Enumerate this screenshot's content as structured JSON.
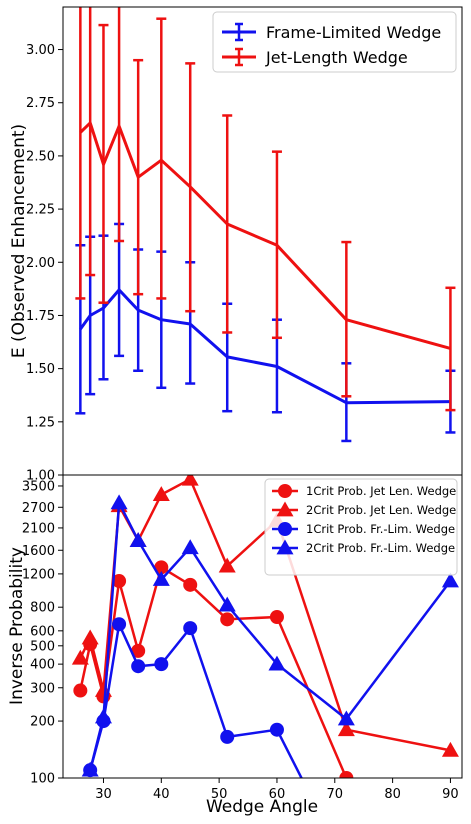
{
  "colors": {
    "red": "#ee1111",
    "blue": "#1111ee",
    "axis": "#000000"
  },
  "chart_data": [
    {
      "type": "line",
      "ylabel": "E (Observed Enhancement)",
      "ylim": [
        1.0,
        3.2
      ],
      "xlim": [
        23,
        92
      ],
      "yticks": [
        "1.00",
        "1.25",
        "1.50",
        "1.75",
        "2.00",
        "2.25",
        "2.50",
        "2.75",
        "3.00"
      ],
      "legend_position": "top-right",
      "series": [
        {
          "name": "Frame-Limited Wedge",
          "color": "blue",
          "points": [
            {
              "x": 26,
              "y": 1.685,
              "lo": 1.29,
              "hi": 2.08
            },
            {
              "x": 27.7,
              "y": 1.75,
              "lo": 1.38,
              "hi": 2.12
            },
            {
              "x": 30,
              "y": 1.785,
              "lo": 1.45,
              "hi": 2.125
            },
            {
              "x": 32.7,
              "y": 1.87,
              "lo": 1.56,
              "hi": 2.18
            },
            {
              "x": 36,
              "y": 1.775,
              "lo": 1.49,
              "hi": 2.06
            },
            {
              "x": 40,
              "y": 1.73,
              "lo": 1.41,
              "hi": 2.05
            },
            {
              "x": 45,
              "y": 1.71,
              "lo": 1.43,
              "hi": 2.0
            },
            {
              "x": 51.4,
              "y": 1.555,
              "lo": 1.3,
              "hi": 1.805
            },
            {
              "x": 60,
              "y": 1.51,
              "lo": 1.295,
              "hi": 1.73
            },
            {
              "x": 72,
              "y": 1.34,
              "lo": 1.16,
              "hi": 1.525
            },
            {
              "x": 90,
              "y": 1.345,
              "lo": 1.2,
              "hi": 1.49
            }
          ]
        },
        {
          "name": "Jet-Length Wedge",
          "color": "red",
          "points": [
            {
              "x": 26,
              "y": 2.61,
              "lo": 1.83,
              "hi": 3.4
            },
            {
              "x": 27.7,
              "y": 2.655,
              "lo": 1.94,
              "hi": 3.4
            },
            {
              "x": 30,
              "y": 2.46,
              "lo": 1.81,
              "hi": 3.115
            },
            {
              "x": 32.7,
              "y": 2.64,
              "lo": 2.1,
              "hi": 3.4
            },
            {
              "x": 36,
              "y": 2.4,
              "lo": 1.85,
              "hi": 2.95
            },
            {
              "x": 40,
              "y": 2.48,
              "lo": 1.83,
              "hi": 3.145
            },
            {
              "x": 45,
              "y": 2.355,
              "lo": 1.77,
              "hi": 2.935
            },
            {
              "x": 51.4,
              "y": 2.18,
              "lo": 1.67,
              "hi": 2.69
            },
            {
              "x": 60,
              "y": 2.08,
              "lo": 1.645,
              "hi": 2.52
            },
            {
              "x": 72,
              "y": 1.73,
              "lo": 1.37,
              "hi": 2.095
            },
            {
              "x": 90,
              "y": 1.595,
              "lo": 1.305,
              "hi": 1.88
            }
          ]
        }
      ]
    },
    {
      "type": "line",
      "xlabel": "Wedge Angle",
      "ylabel": "Inverse Probability",
      "yscale": "log",
      "ylim": [
        100,
        4000
      ],
      "xlim": [
        23,
        92
      ],
      "xticks": [
        "30",
        "40",
        "50",
        "60",
        "70",
        "80",
        "90"
      ],
      "yticks": [
        "100",
        "200",
        "300",
        "400",
        "500",
        "600",
        "800",
        "1200",
        "1600",
        "2100",
        "2700",
        "3500"
      ],
      "legend_position": "top-right",
      "series": [
        {
          "name": "1Crit Prob. Jet Len. Wedge",
          "color": "red",
          "marker": "circle",
          "points": [
            [
              26,
              290
            ],
            [
              27.7,
              510
            ],
            [
              30,
              270
            ],
            [
              32.7,
              1100
            ],
            [
              36,
              470
            ],
            [
              40,
              1300
            ],
            [
              45,
              1050
            ],
            [
              51.4,
              690
            ],
            [
              60,
              710
            ],
            [
              72,
              100
            ]
          ]
        },
        {
          "name": "2Crit Prob. Jet Len. Wedge",
          "color": "red",
          "marker": "triangle",
          "points": [
            [
              26,
              430
            ],
            [
              27.7,
              550
            ],
            [
              30,
              290
            ],
            [
              32.7,
              2750
            ],
            [
              36,
              1800
            ],
            [
              40,
              3150
            ],
            [
              45,
              3800
            ],
            [
              51.4,
              1320
            ],
            [
              60,
              2300
            ],
            [
              72,
              180
            ],
            [
              90,
              140
            ]
          ]
        },
        {
          "name": "1Crit Prob. Fr.-Lim. Wedge",
          "color": "blue",
          "marker": "circle",
          "points": [
            [
              27.7,
              110
            ],
            [
              30,
              200
            ],
            [
              32.7,
              650
            ],
            [
              36,
              390
            ],
            [
              40,
              400
            ],
            [
              45,
              620
            ],
            [
              51.4,
              165
            ],
            [
              60,
              180
            ],
            [
              65,
              90
            ]
          ]
        },
        {
          "name": "2Crit Prob. Fr.-Lim. Wedge",
          "color": "blue",
          "marker": "triangle",
          "points": [
            [
              27.7,
              110
            ],
            [
              30,
              210
            ],
            [
              32.7,
              2850
            ],
            [
              36,
              1800
            ],
            [
              40,
              1120
            ],
            [
              45,
              1650
            ],
            [
              51.4,
              820
            ],
            [
              60,
              400
            ],
            [
              72,
              205
            ],
            [
              90,
              1100
            ]
          ]
        }
      ]
    }
  ]
}
